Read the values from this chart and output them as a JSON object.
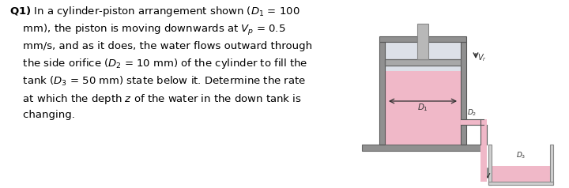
{
  "bg_color": "#ffffff",
  "water_color": "#f0b8c8",
  "wall_color": "#909090",
  "wall_edge": "#555555",
  "pipe_color": "#b0b0b0",
  "pipe_edge": "#777777",
  "tank_color": "#d0d0d0",
  "tank_edge": "#888888",
  "piston_color": "#a8a8a8",
  "piston_edge": "#666666",
  "rod_color": "#b8b8b8",
  "rod_edge": "#888888",
  "plat_color": "#909090",
  "plat_edge": "#666666",
  "air_color": "#dce0e8",
  "label_color": "#303030",
  "arrow_color": "#303030"
}
